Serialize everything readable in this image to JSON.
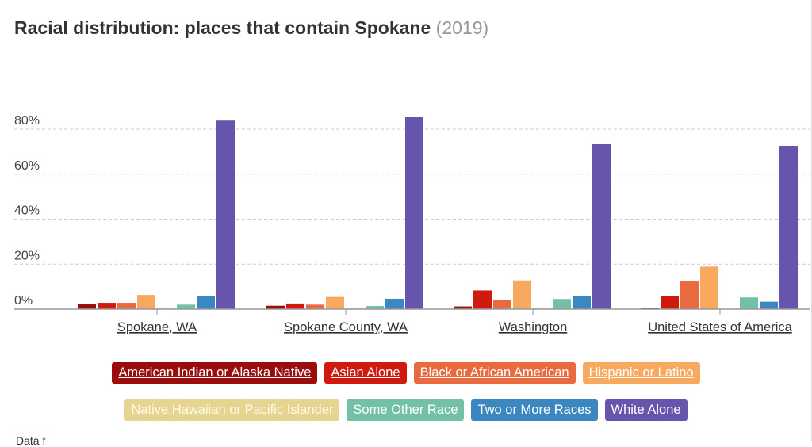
{
  "title": "Racial distribution: places that contain Spokane",
  "year": "(2019)",
  "footer_partial": "Data f",
  "chart_data": {
    "type": "bar",
    "title": "Racial distribution: places that contain Spokane (2019)",
    "xlabel": "",
    "ylabel": "",
    "ylim": [
      0,
      90
    ],
    "yticks": [
      0,
      20,
      40,
      60,
      80
    ],
    "ytick_labels": [
      "0%",
      "20%",
      "40%",
      "60%",
      "80%"
    ],
    "grid": true,
    "legend_placement": "bottom",
    "categories": [
      "Spokane, WA",
      "Spokane County, WA",
      "Washington",
      "United States of America"
    ],
    "series": [
      {
        "name": "American Indian or Alaska Native",
        "color": "#9b0d0d",
        "values": [
          2.1,
          1.5,
          1.2,
          0.7
        ]
      },
      {
        "name": "Asian Alone",
        "color": "#d0190f",
        "values": [
          2.8,
          2.5,
          8.3,
          5.7
        ]
      },
      {
        "name": "Black or African American",
        "color": "#ea6a3f",
        "values": [
          2.8,
          2.0,
          4.0,
          12.7
        ]
      },
      {
        "name": "Hispanic or Latino",
        "color": "#f9a85f",
        "values": [
          6.3,
          5.4,
          12.8,
          18.9
        ]
      },
      {
        "name": "Native Hawaiian or Pacific Islander",
        "color": "#e6d491",
        "values": [
          0.5,
          0.4,
          0.7,
          0.2
        ]
      },
      {
        "name": "Some Other Race",
        "color": "#72c0a6",
        "values": [
          2.0,
          1.4,
          4.5,
          5.2
        ]
      },
      {
        "name": "Two or More Races",
        "color": "#3a88bf",
        "values": [
          5.8,
          4.6,
          5.8,
          3.3
        ]
      },
      {
        "name": "White Alone",
        "color": "#6654ad",
        "values": [
          83.8,
          85.6,
          73.3,
          72.6
        ]
      }
    ]
  }
}
